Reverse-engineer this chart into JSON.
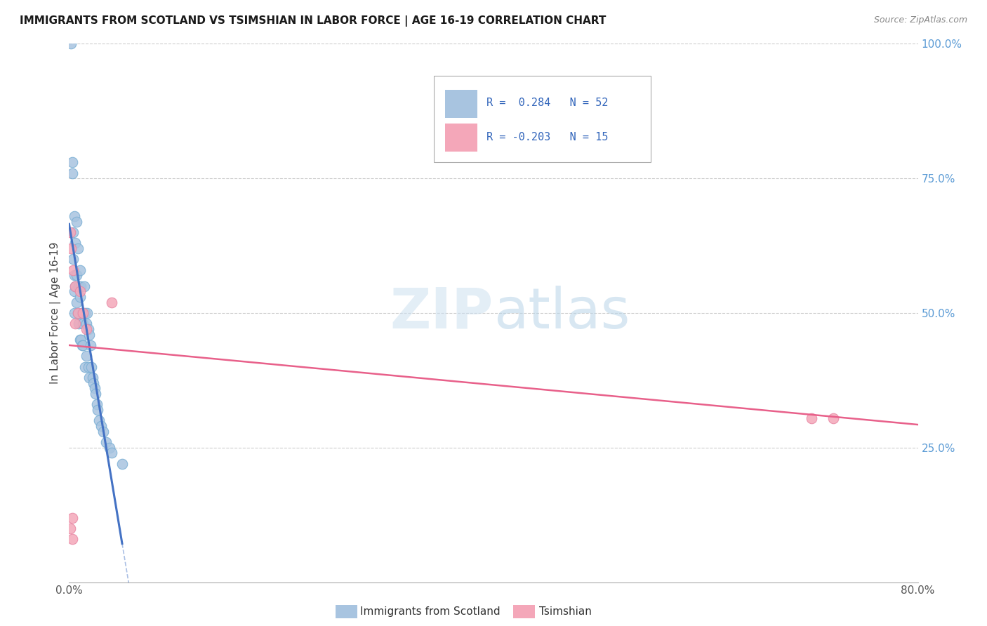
{
  "title": "IMMIGRANTS FROM SCOTLAND VS TSIMSHIAN IN LABOR FORCE | AGE 16-19 CORRELATION CHART",
  "source": "Source: ZipAtlas.com",
  "ylabel": "In Labor Force | Age 16-19",
  "xlim": [
    0.0,
    0.8
  ],
  "ylim": [
    0.0,
    1.0
  ],
  "scotland_R": 0.284,
  "scotland_N": 52,
  "tsimshian_R": -0.203,
  "tsimshian_N": 15,
  "scotland_color": "#a8c4e0",
  "scotland_edge_color": "#7aafd4",
  "tsimshian_color": "#f4a7b9",
  "tsimshian_edge_color": "#e888a4",
  "scotland_line_color": "#4472c4",
  "tsimshian_line_color": "#e8608a",
  "grid_color": "#cccccc",
  "background_color": "#ffffff",
  "scotland_x": [
    0.002,
    0.003,
    0.003,
    0.004,
    0.004,
    0.005,
    0.005,
    0.005,
    0.005,
    0.006,
    0.006,
    0.007,
    0.007,
    0.007,
    0.008,
    0.008,
    0.009,
    0.009,
    0.01,
    0.01,
    0.01,
    0.011,
    0.011,
    0.012,
    0.012,
    0.013,
    0.013,
    0.014,
    0.015,
    0.015,
    0.016,
    0.016,
    0.017,
    0.018,
    0.018,
    0.019,
    0.019,
    0.02,
    0.021,
    0.022,
    0.023,
    0.024,
    0.025,
    0.026,
    0.027,
    0.028,
    0.03,
    0.032,
    0.035,
    0.038,
    0.04,
    0.05
  ],
  "scotland_y": [
    1.0,
    0.78,
    0.76,
    0.65,
    0.6,
    0.68,
    0.57,
    0.54,
    0.5,
    0.63,
    0.55,
    0.67,
    0.57,
    0.52,
    0.62,
    0.5,
    0.55,
    0.48,
    0.58,
    0.53,
    0.45,
    0.55,
    0.45,
    0.5,
    0.44,
    0.48,
    0.44,
    0.55,
    0.5,
    0.4,
    0.48,
    0.42,
    0.5,
    0.47,
    0.4,
    0.46,
    0.38,
    0.44,
    0.4,
    0.38,
    0.37,
    0.36,
    0.35,
    0.33,
    0.32,
    0.3,
    0.29,
    0.28,
    0.26,
    0.25,
    0.24,
    0.22
  ],
  "tsimshian_x": [
    0.001,
    0.001,
    0.002,
    0.003,
    0.004,
    0.006,
    0.006,
    0.008,
    0.01,
    0.013,
    0.016,
    0.04,
    0.7,
    0.72,
    0.003
  ],
  "tsimshian_y": [
    0.65,
    0.1,
    0.62,
    0.12,
    0.58,
    0.55,
    0.48,
    0.5,
    0.54,
    0.5,
    0.47,
    0.52,
    0.305,
    0.305,
    0.08
  ],
  "legend_scotland_text": "R =  0.284   N = 52",
  "legend_tsimshian_text": "R = -0.203   N = 15"
}
